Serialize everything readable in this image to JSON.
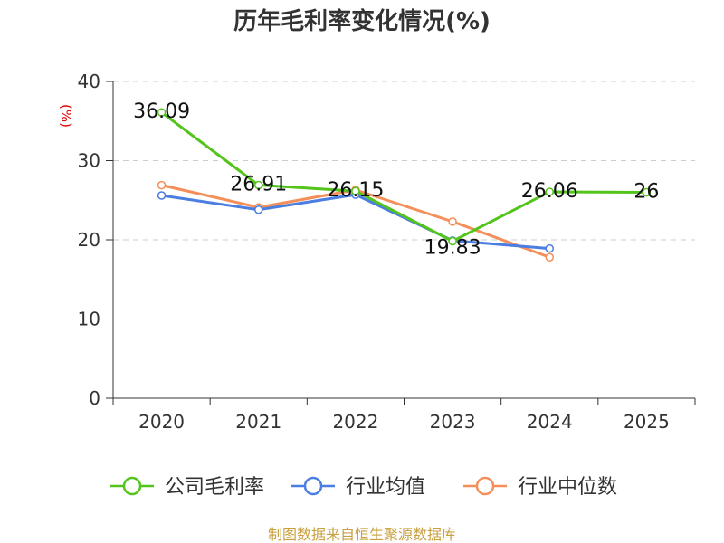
{
  "chart_data": {
    "type": "line",
    "title": "历年毛利率变化情况(%)",
    "ylabel": "(%)",
    "xlabel": "",
    "categories": [
      "2020",
      "2021",
      "2022",
      "2023",
      "2024",
      "2025"
    ],
    "ylim": [
      0,
      40
    ],
    "yticks": [
      0,
      10,
      20,
      30,
      40
    ],
    "grid": true,
    "legend_position": "bottom",
    "series": [
      {
        "name": "公司毛利率",
        "color": "#52c41a",
        "values": [
          36.09,
          26.91,
          26.15,
          19.83,
          26.06,
          26
        ],
        "labels": [
          "36.09",
          "26.91",
          "26.15",
          "19.83",
          "26.06",
          "26"
        ]
      },
      {
        "name": "行业均值",
        "color": "#4a7ee0",
        "values": [
          25.6,
          23.8,
          25.7,
          19.9,
          18.9,
          null
        ]
      },
      {
        "name": "行业中位数",
        "color": "#f58f5a",
        "values": [
          26.9,
          24.1,
          26.3,
          22.3,
          17.8,
          null
        ]
      }
    ]
  },
  "source_text": "制图数据来自恒生聚源数据库"
}
